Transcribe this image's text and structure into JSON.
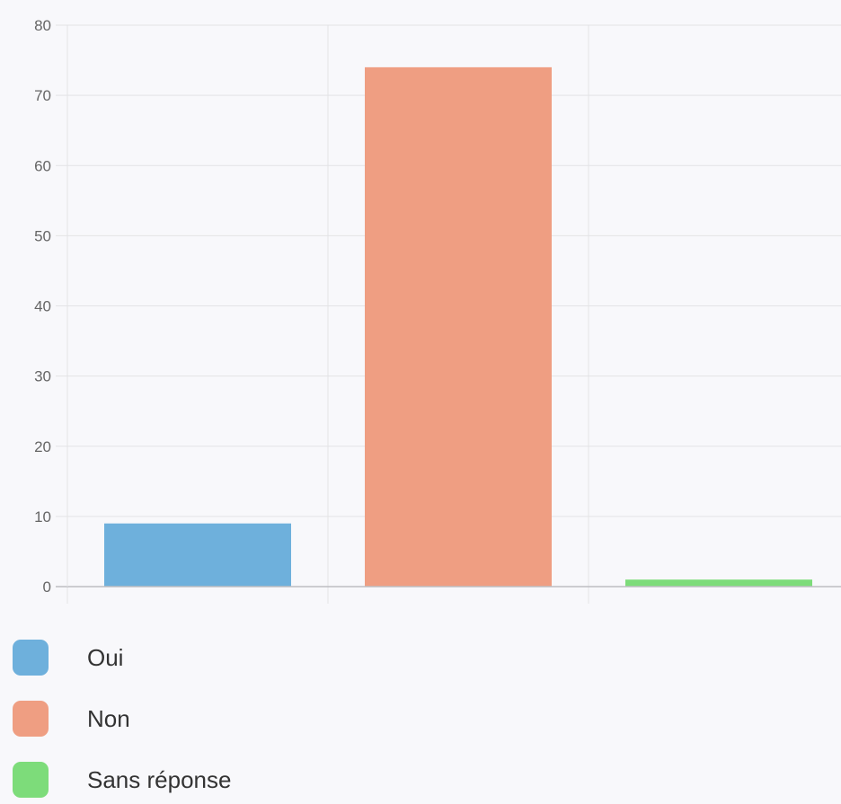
{
  "chart_data": {
    "type": "bar",
    "categories": [
      "Oui",
      "Non",
      "Sans réponse"
    ],
    "values": [
      9,
      74,
      1
    ],
    "colors": [
      "#6eb0dc",
      "#ef9e82",
      "#7ddc7a"
    ],
    "ylim": [
      0,
      80
    ],
    "yticks": [
      0,
      10,
      20,
      30,
      40,
      50,
      60,
      70,
      80
    ],
    "grid": true,
    "legend_position": "bottom"
  }
}
